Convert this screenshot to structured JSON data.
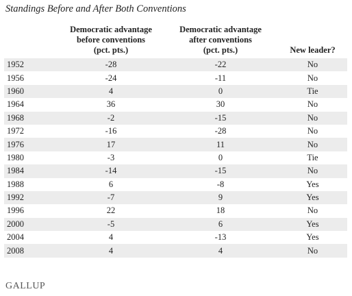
{
  "title": "Standings Before and After Both Conventions",
  "table": {
    "headers": [
      [],
      [
        "Democratic advantage",
        "before conventions",
        "(pct. pts.)"
      ],
      [
        "Democratic advantage",
        "after conventions",
        "(pct. pts.)"
      ],
      [
        "New leader?"
      ]
    ],
    "rows": [
      [
        "1952",
        "-28",
        "-22",
        "No"
      ],
      [
        "1956",
        "-24",
        "-11",
        "No"
      ],
      [
        "1960",
        "4",
        "0",
        "Tie"
      ],
      [
        "1964",
        "36",
        "30",
        "No"
      ],
      [
        "1968",
        "-2",
        "-15",
        "No"
      ],
      [
        "1972",
        "-16",
        "-28",
        "No"
      ],
      [
        "1976",
        "17",
        "11",
        "No"
      ],
      [
        "1980",
        "-3",
        "0",
        "Tie"
      ],
      [
        "1984",
        "-14",
        "-15",
        "No"
      ],
      [
        "1988",
        "6",
        "-8",
        "Yes"
      ],
      [
        "1992",
        "-7",
        "9",
        "Yes"
      ],
      [
        "1996",
        "22",
        "18",
        "No"
      ],
      [
        "2000",
        "-5",
        "6",
        "Yes"
      ],
      [
        "2004",
        "4",
        "-13",
        "Yes"
      ],
      [
        "2008",
        "4",
        "4",
        "No"
      ]
    ]
  },
  "footer": "GALLUP"
}
